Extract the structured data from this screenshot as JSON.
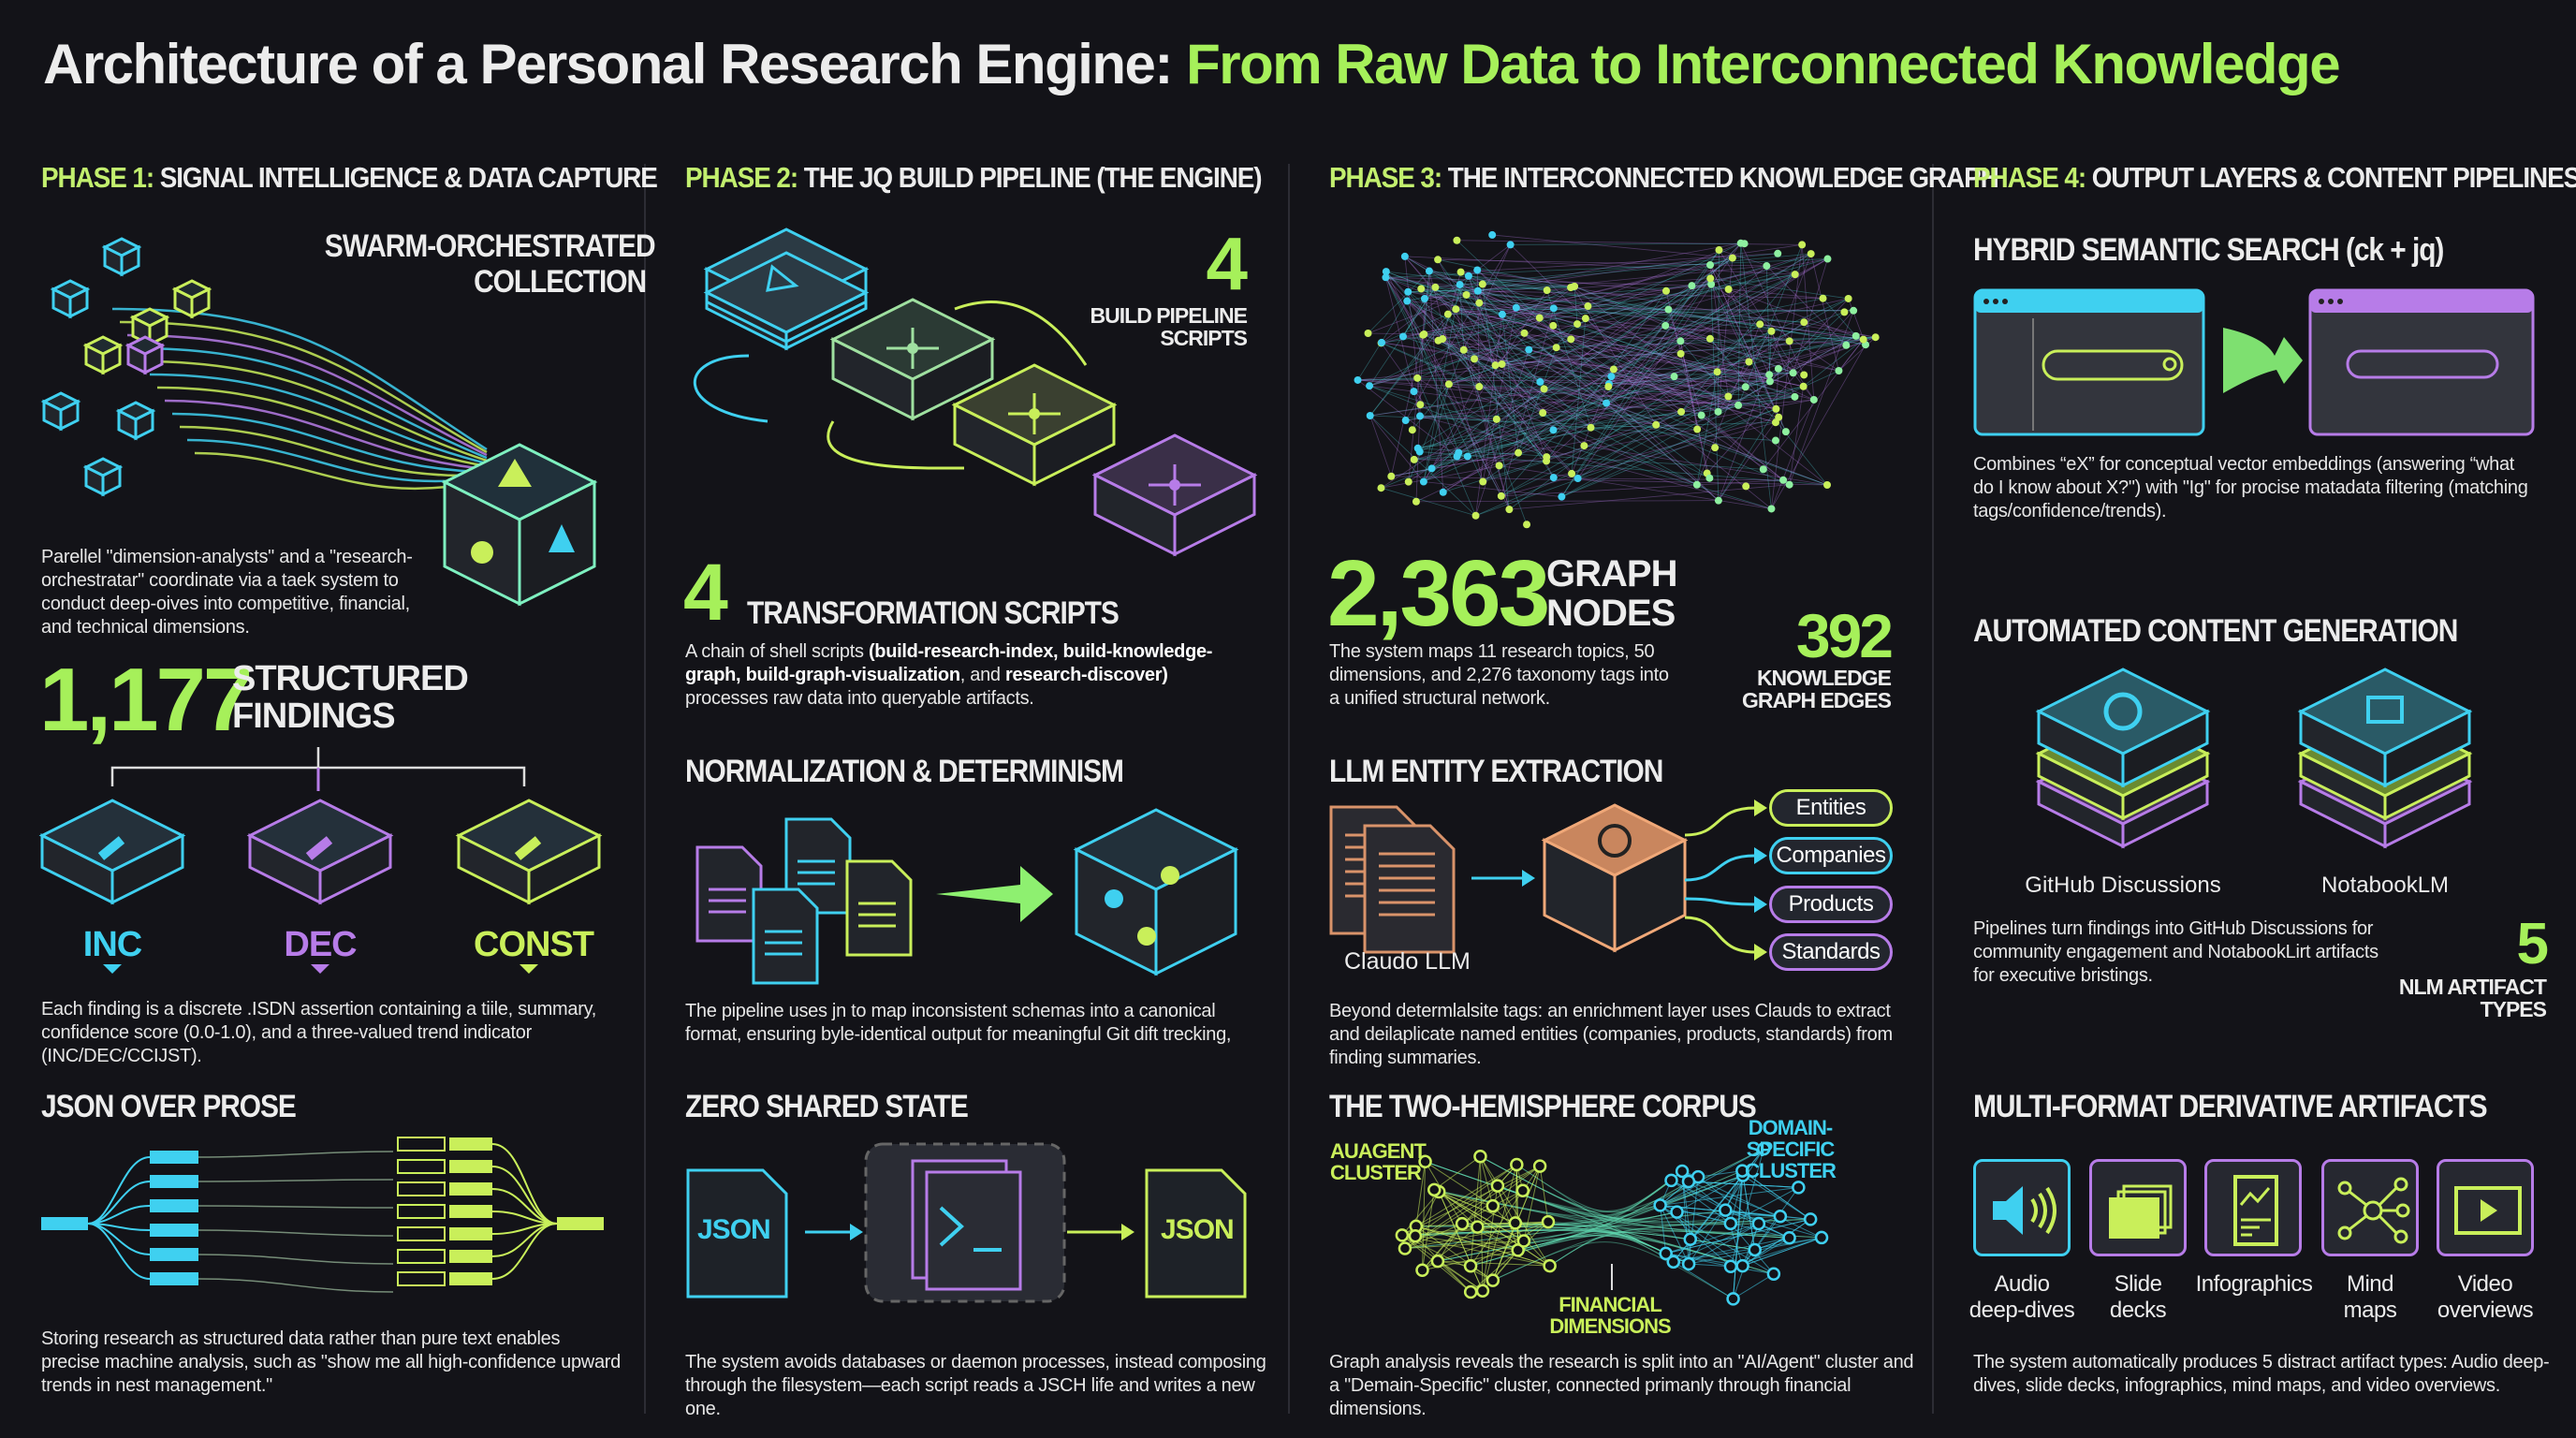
{
  "title": {
    "main": "Architecture of a Personal Research Engine:",
    "highlight": "From Raw Data to Interconnected Knowledge"
  },
  "colors": {
    "background": "#131318",
    "accent_green": "#a6f05a",
    "cyan": "#3fd0f0",
    "purple": "#b77ce8",
    "orange": "#d9936a"
  },
  "phase1": {
    "label": "PHASE 1:",
    "title": "SIGNAL INTELLIGENCE & DATA CAPTURE",
    "swarm_caption": [
      "SWARM-ORCHESTRATED",
      "COLLECTION"
    ],
    "swarm_text": "Parellel \"dimension-analysts\" and a \"research-orchestratar\" coordinate via a taek system to conduct deep-oives into competitive, financial, and technical dimensions.",
    "findings_count": "1,177",
    "findings_label": [
      "STRUCTURED",
      "FINDINGS"
    ],
    "trends": [
      {
        "label": "INC",
        "icon": "arrow-up-right-icon"
      },
      {
        "label": "DEC",
        "icon": "arrow-down-left-icon"
      },
      {
        "label": "CONST",
        "icon": "minus-circle-icon"
      }
    ],
    "findings_text": "Each finding is a discrete .ISDN assertion containing a tiile, summary, confidence score (0.0-1.0), and a three-valued trend indicator (INC/DEC/CCIJST).",
    "json_title": "JSON OVER PROSE",
    "json_text": "Storing research as structured data rather than pure text enables precise machine analysis, such as \"show me all high-confidence upward trends in nest management.\""
  },
  "phase2": {
    "label": "PHASE 2:",
    "title": "THE JQ BUILD PIPELINE (THE ENGINE)",
    "pipeline_count": "4",
    "pipeline_label": [
      "BUILD PIPELINE",
      "SCRIPTS"
    ],
    "transform_count": "4",
    "transform_label": "TRANSFORMATION SCRIPTS",
    "transform_text": {
      "pre": "A chain of shell scripts ",
      "bold1": "(build-research-index, build-knowledge-graph, build-graph-visualization",
      "mid": ", and ",
      "bold2": "research-discover)",
      "post": " processes raw data into queryable artifacts."
    },
    "norm_title": "NORMALIZATION & DETERMINISM",
    "norm_text": "The pipeline uses jn to map inconsistent schemas into a canonical format, ensuring byle-identical output for meaningful Git dift trecking,",
    "zero_title": "ZERO SHARED STATE",
    "json_in": "JSON",
    "json_out": "JSON",
    "terminal_icon": "terminal-icon",
    "zero_text": "The system avoids databases or daemon processes, instead composing through the filesystem—each script reads a JSCH life and writes a new one."
  },
  "phase3": {
    "label": "PHASE 3:",
    "title": "THE INTERCONNECTED KNOWLEDGE GRAPH",
    "nodes_count": "2,363",
    "nodes_label": [
      "GRAPH",
      "NODES"
    ],
    "edges_count": "392",
    "edges_label": [
      "KNOWLEDGE",
      "GRAPH EDGES"
    ],
    "graph_text": "The system maps 11 research topics, 50 dimensions, and 2,276 taxonomy tags into a unified structural network.",
    "llm_title": "LLM ENTITY EXTRACTION",
    "llm_source": "Claudo LLM",
    "entities": [
      "Entities",
      "Companies",
      "Products",
      "Standards"
    ],
    "llm_text": "Beyond determlalsite tags: an enrichment layer uses Clauds to extract and deilaplicate named entities (companies, products, standards) from finding summaries.",
    "corpus_title": "THE TWO-HEMISPHERE CORPUS",
    "cluster_left": [
      "AUAGENT",
      "CLUSTER"
    ],
    "cluster_right": [
      "DOMAIN-SPECIFIC",
      "CLUSTER"
    ],
    "bridge": [
      "FINANCIAL",
      "DIMENSIONS"
    ],
    "corpus_text": "Graph analysis reveals the research is split into an \"AI/Agent\" cluster and a \"Demain-Specific\" cluster, connected primanly through financial dimensions."
  },
  "phase4": {
    "label": "PHASE 4:",
    "title": "OUTPUT LAYERS & CONTENT PIPELINES",
    "search_title": "HYBRID SEMANTIC SEARCH (ck + jq)",
    "search_text": "Combines “eX” for conceptual vector embeddings (answering “what do I know about X?\") with \"Ig\" for procise matadata filtering (matching tags/confidence/trends).",
    "auto_title": "AUTOMATED CONTENT GENERATION",
    "targets": [
      "GitHub Discussions",
      "NotabookLM"
    ],
    "auto_text": "Pipelines turn findings into GitHub Discussions for community engagement and NotabookLirt artifacts for executive bristings.",
    "artifact_count": "5",
    "artifact_label": [
      "NLM ARTIFACT",
      "TYPES"
    ],
    "multi_title": "MULTI-FORMAT DERIVATIVE ARTIFACTS",
    "artifacts": [
      {
        "label": [
          "Audio",
          "deep-dives"
        ],
        "icon": "speaker-icon"
      },
      {
        "label": [
          "Slide",
          "decks"
        ],
        "icon": "slides-icon"
      },
      {
        "label": [
          "Infographics",
          ""
        ],
        "icon": "infographic-icon"
      },
      {
        "label": [
          "Mind",
          "maps"
        ],
        "icon": "mind-map-icon"
      },
      {
        "label": [
          "Video",
          "overviews"
        ],
        "icon": "video-icon"
      }
    ],
    "multi_text": "The system automatically produces 5 distract artifact types: Audio deep-dives, slide decks, infographics, mind maps, and video overviews."
  }
}
